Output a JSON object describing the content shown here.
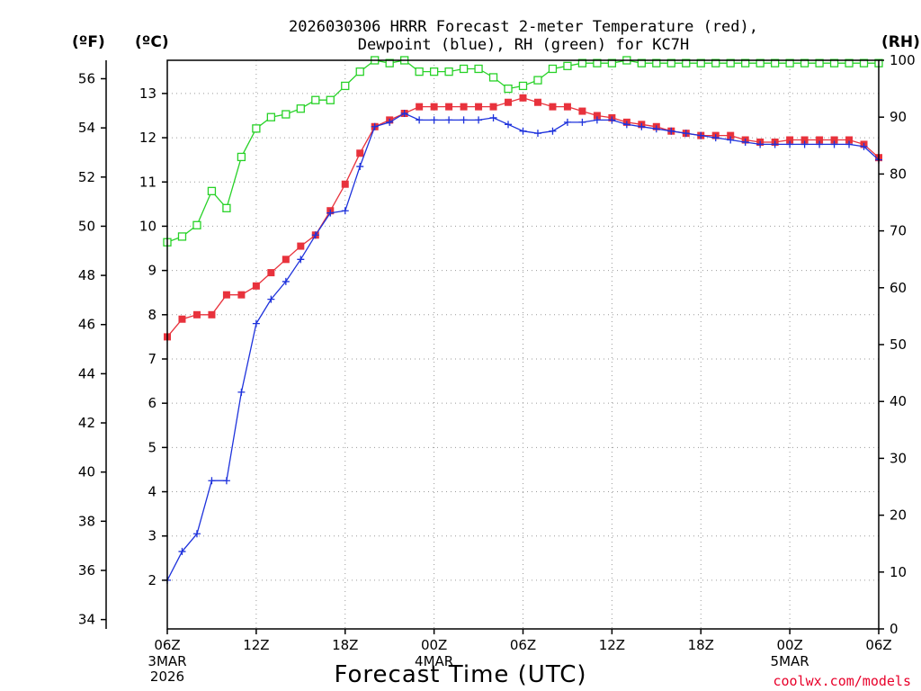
{
  "chart_data": {
    "type": "line",
    "title_lines": [
      "2026030306 HRRR Forecast 2-meter Temperature (red),",
      "Dewpoint (blue), RH (green) for KC7H"
    ],
    "units": {
      "fahrenheit": "(ºF)",
      "celsius": "(ºC)",
      "rh": "(RH)"
    },
    "xlabel": "Forecast Time (UTC)",
    "credit": "coolwx.com/models",
    "credit_color": "#e8002a",
    "x_range": [
      0,
      48
    ],
    "x_ticks": [
      {
        "x": 0,
        "label": "06Z"
      },
      {
        "x": 6,
        "label": "12Z"
      },
      {
        "x": 12,
        "label": "18Z"
      },
      {
        "x": 18,
        "label": "00Z"
      },
      {
        "x": 24,
        "label": "06Z"
      },
      {
        "x": 30,
        "label": "12Z"
      },
      {
        "x": 36,
        "label": "18Z"
      },
      {
        "x": 42,
        "label": "00Z"
      },
      {
        "x": 48,
        "label": "06Z"
      }
    ],
    "date_labels": [
      {
        "x": 0,
        "lines": [
          "3MAR",
          "2026"
        ]
      },
      {
        "x": 18,
        "lines": [
          "4MAR"
        ]
      },
      {
        "x": 42,
        "lines": [
          "5MAR"
        ]
      }
    ],
    "y_celsius": {
      "range": [
        0.9,
        13.75
      ],
      "ticks": [
        2,
        3,
        4,
        5,
        6,
        7,
        8,
        9,
        10,
        11,
        12,
        13
      ]
    },
    "y_fahrenheit": {
      "ticks": [
        34,
        36,
        38,
        40,
        42,
        44,
        46,
        48,
        50,
        52,
        54,
        56
      ]
    },
    "y_rh": {
      "range": [
        0,
        100
      ],
      "ticks": [
        0,
        10,
        20,
        30,
        40,
        50,
        60,
        70,
        80,
        90,
        100
      ]
    },
    "colors": {
      "temperature": "#e8323c",
      "dewpoint": "#1e32dc",
      "rh": "#28d228",
      "grid": "#9a9a9a",
      "axis": "#000000"
    },
    "series": [
      {
        "name": "Temperature",
        "axis": "celsius",
        "marker": "filled-square",
        "values": [
          7.5,
          7.9,
          8.0,
          8.0,
          8.45,
          8.45,
          8.65,
          8.95,
          9.25,
          9.55,
          9.8,
          10.35,
          10.95,
          11.65,
          12.25,
          12.4,
          12.55,
          12.7,
          12.7,
          12.7,
          12.7,
          12.7,
          12.7,
          12.8,
          12.9,
          12.8,
          12.7,
          12.7,
          12.6,
          12.5,
          12.45,
          12.35,
          12.3,
          12.25,
          12.15,
          12.1,
          12.05,
          12.05,
          12.05,
          11.95,
          11.9,
          11.9,
          11.95,
          11.95,
          11.95,
          11.95,
          11.95,
          11.85,
          11.55
        ]
      },
      {
        "name": "Dewpoint",
        "axis": "celsius",
        "marker": "plus",
        "values": [
          2.0,
          2.65,
          3.05,
          4.25,
          4.25,
          6.25,
          7.8,
          8.35,
          8.75,
          9.25,
          9.8,
          10.3,
          10.35,
          11.35,
          12.25,
          12.35,
          12.55,
          12.4,
          12.4,
          12.4,
          12.4,
          12.4,
          12.45,
          12.3,
          12.15,
          12.1,
          12.15,
          12.35,
          12.35,
          12.4,
          12.4,
          12.3,
          12.25,
          12.2,
          12.15,
          12.1,
          12.05,
          12.0,
          11.95,
          11.9,
          11.85,
          11.85,
          11.85,
          11.85,
          11.85,
          11.85,
          11.85,
          11.8,
          11.5
        ]
      },
      {
        "name": "RH",
        "axis": "rh",
        "marker": "open-square",
        "values": [
          68,
          69,
          71,
          77,
          74,
          83,
          88,
          90,
          90.5,
          91.5,
          93,
          93,
          95.5,
          98,
          100,
          99.5,
          100,
          98,
          98,
          98,
          98.5,
          98.5,
          97,
          95,
          95.5,
          96.5,
          98.5,
          99,
          99.5,
          99.5,
          99.5,
          100,
          99.5,
          99.5,
          99.5,
          99.5,
          99.5,
          99.5,
          99.5,
          99.5,
          99.5,
          99.5,
          99.5,
          99.5,
          99.5,
          99.5,
          99.5,
          99.5,
          99.5
        ]
      }
    ]
  }
}
